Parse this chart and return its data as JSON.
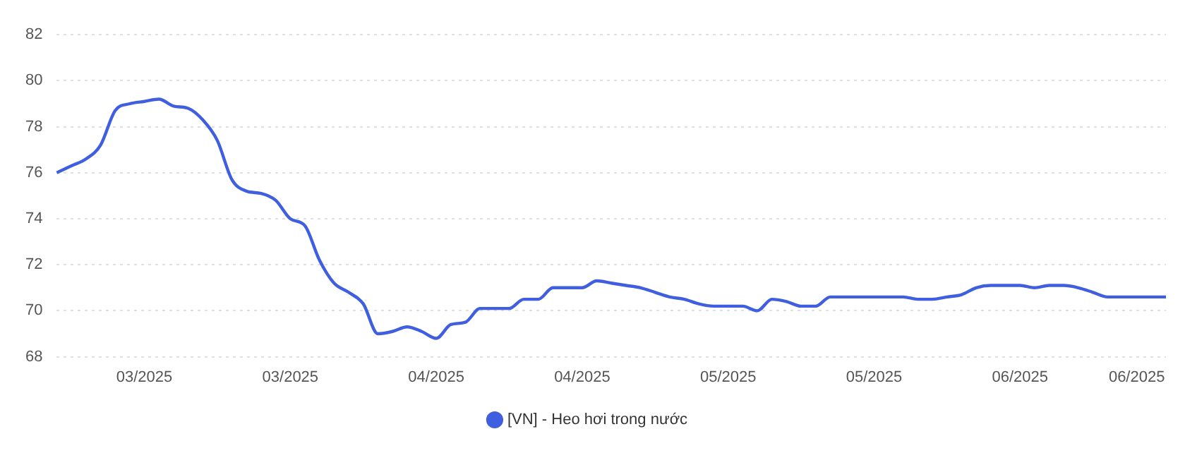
{
  "chart_data": {
    "type": "line",
    "categories": [
      null,
      null,
      null,
      null,
      null,
      null,
      "03/2025",
      null,
      null,
      null,
      null,
      null,
      null,
      null,
      null,
      null,
      "03/2025",
      null,
      null,
      null,
      null,
      null,
      null,
      null,
      null,
      null,
      "04/2025",
      null,
      null,
      null,
      null,
      null,
      null,
      null,
      null,
      null,
      "04/2025",
      null,
      null,
      null,
      null,
      null,
      null,
      null,
      null,
      null,
      "05/2025",
      null,
      null,
      null,
      null,
      null,
      null,
      null,
      null,
      null,
      "05/2025",
      null,
      null,
      null,
      null,
      null,
      null,
      null,
      null,
      null,
      "06/2025",
      null,
      null,
      null,
      null,
      null,
      null,
      null,
      "06/2025",
      null,
      null
    ],
    "series": [
      {
        "name": "[VN] - Heo hơi trong nước",
        "color": "#3f5fe0",
        "values": [
          76.0,
          76.3,
          76.6,
          77.2,
          78.7,
          79.0,
          79.1,
          79.2,
          78.9,
          78.8,
          78.3,
          77.4,
          75.7,
          75.2,
          75.1,
          74.8,
          74.0,
          73.7,
          72.2,
          71.2,
          70.8,
          70.3,
          69.0,
          69.1,
          69.3,
          69.1,
          68.8,
          69.4,
          69.5,
          70.1,
          70.1,
          70.1,
          70.5,
          70.5,
          71.0,
          71.0,
          71.0,
          71.3,
          71.2,
          71.1,
          71.0,
          70.8,
          70.6,
          70.5,
          70.3,
          70.2,
          70.2,
          70.2,
          70.0,
          70.5,
          70.4,
          70.2,
          70.2,
          70.6,
          70.6,
          70.6,
          70.6,
          70.6,
          70.6,
          70.5,
          70.5,
          70.6,
          70.7,
          71.0,
          71.1,
          71.1,
          71.1,
          71.0,
          71.1,
          71.1,
          71.0,
          70.8,
          70.6,
          70.6,
          70.6,
          70.6,
          70.6
        ]
      }
    ],
    "ylim": [
      68,
      82
    ],
    "yticks": [
      68,
      70,
      72,
      74,
      76,
      78,
      80,
      82
    ],
    "grid": "y",
    "legend": "bottom",
    "marker": "none",
    "line_style": "solid"
  }
}
